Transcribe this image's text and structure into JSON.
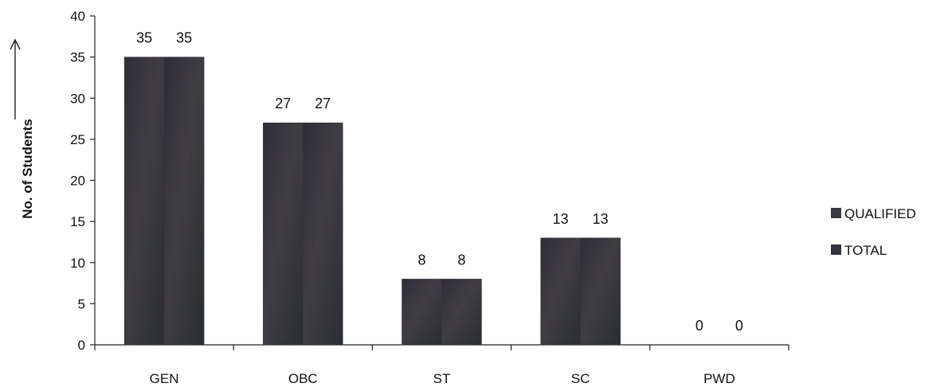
{
  "chart_data": {
    "type": "bar",
    "title": "",
    "xlabel": "",
    "ylabel": "No. of Students",
    "ylim": [
      0,
      40
    ],
    "yticks": [
      0,
      5,
      10,
      15,
      20,
      25,
      30,
      35,
      40
    ],
    "categories": [
      "GEN",
      "OBC",
      "ST",
      "SC",
      "PWD"
    ],
    "series": [
      {
        "name": "QUALIFIED",
        "values": [
          35,
          27,
          8,
          13,
          0
        ],
        "color": "#3a3a44"
      },
      {
        "name": "TOTAL",
        "values": [
          35,
          27,
          8,
          13,
          0
        ],
        "color": "#33333d"
      }
    ],
    "grid": false,
    "legend": "right",
    "arrow_on_ylabel": true
  }
}
